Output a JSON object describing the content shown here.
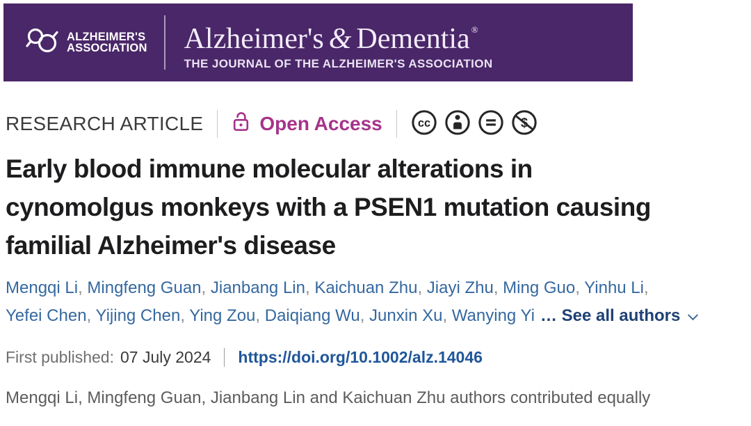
{
  "banner": {
    "bg_color": "#4A2768",
    "logo_line1": "ALZHEIMER'S",
    "logo_line2": "ASSOCIATION",
    "journal_title_pre": "Alzheimer's",
    "journal_title_amp": "&",
    "journal_title_post": "Dementia",
    "registered_mark": "®",
    "journal_subtitle": "THE JOURNAL OF THE ALZHEIMER'S ASSOCIATION"
  },
  "meta": {
    "article_type": "RESEARCH ARTICLE",
    "open_access_label": "Open Access",
    "open_access_color": "#A6338A",
    "license_icons": [
      "cc-icon",
      "cc-by-person-icon",
      "cc-nd-equals-icon",
      "cc-nc-dollar-slash-icon"
    ]
  },
  "article": {
    "title_lines": [
      "Early blood immune molecular alterations in",
      "cynomolgus monkeys with a PSEN1 mutation causing",
      "familial Alzheimer's disease"
    ]
  },
  "authors": {
    "names_line1": [
      "Mengqi Li",
      "Mingfeng Guan",
      "Jianbang Lin",
      "Kaichuan Zhu",
      "Jiayi Zhu",
      "Ming Guo",
      "Yinhu Li"
    ],
    "names_line2": [
      "Yefei Chen",
      "Yijing Chen",
      "Ying Zou",
      "Daiqiang Wu",
      "Junxin Xu",
      "Wanying Yi"
    ],
    "see_all_label": "… See all authors"
  },
  "publication": {
    "first_published_label": "First published:",
    "first_published_date": "07 July 2024",
    "doi_url": "https://doi.org/10.1002/alz.14046"
  },
  "footer_note": "Mengqi Li, Mingfeng Guan, Jianbang Lin and Kaichuan Zhu authors contributed equally",
  "colors": {
    "banner_purple": "#4A2768",
    "open_access_magenta": "#A6338A",
    "license_icon_dark": "#262626",
    "author_blue": "#35689F",
    "separator_gray": "#8C8C8C",
    "see_all_navy": "#1E4175",
    "doi_blue": "#1F5699",
    "title_dark": "#1D1D1F"
  }
}
